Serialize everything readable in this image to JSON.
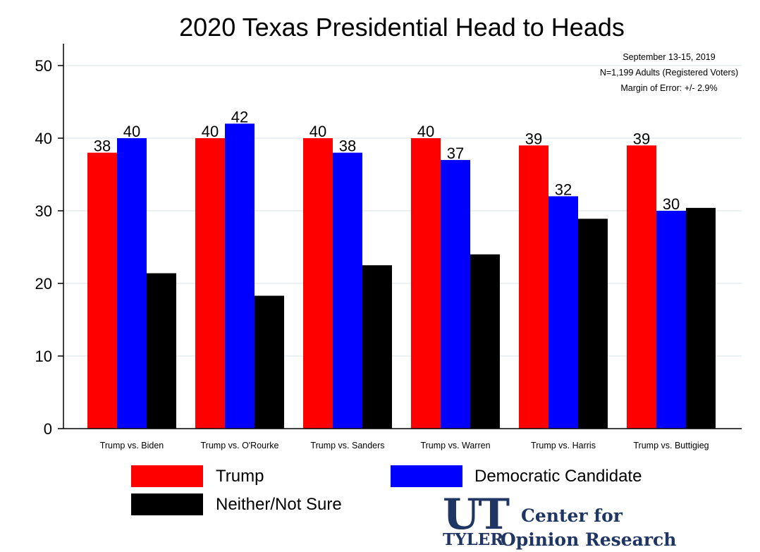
{
  "chart_data": {
    "type": "bar",
    "title": "2020 Texas Presidential Head to Heads",
    "categories": [
      "Trump vs. Biden",
      "Trump vs. O'Rourke",
      "Trump vs. Sanders",
      "Trump vs. Warren",
      "Trump vs. Harris",
      "Trump vs. Buttigieg"
    ],
    "series": [
      {
        "name": "Trump",
        "color": "#ff0000",
        "values": [
          38,
          40,
          40,
          40,
          39,
          39
        ],
        "labels": [
          "38",
          "40",
          "40",
          "40",
          "39",
          "39"
        ]
      },
      {
        "name": "Democratic Candidate",
        "color": "#0000ff",
        "values": [
          40,
          42,
          38,
          37,
          32,
          30
        ],
        "labels": [
          "40",
          "42",
          "38",
          "37",
          "32",
          "30"
        ]
      },
      {
        "name": "Neither/Not Sure",
        "color": "#000000",
        "values": [
          21.4,
          18.3,
          22.5,
          24,
          28.9,
          30.4
        ],
        "labels": []
      }
    ],
    "ylim": [
      0,
      50
    ],
    "yticks": [
      0,
      10,
      20,
      30,
      40,
      50
    ],
    "grid": true,
    "legend_position": "bottom"
  },
  "notes": {
    "line1": "September 13-15, 2019",
    "line2": "N=1,199 Adults (Registered Voters)",
    "line3": "Margin of Error: +/- 2.9%"
  },
  "legend": {
    "trump": "Trump",
    "democratic": "Democratic Candidate",
    "neither": "Neither/Not Sure"
  },
  "logo": {
    "ut": "UT",
    "tyler": "TYLER",
    "line1": "Center for",
    "line2": "Opinion Research",
    "color": "#1f3564"
  }
}
